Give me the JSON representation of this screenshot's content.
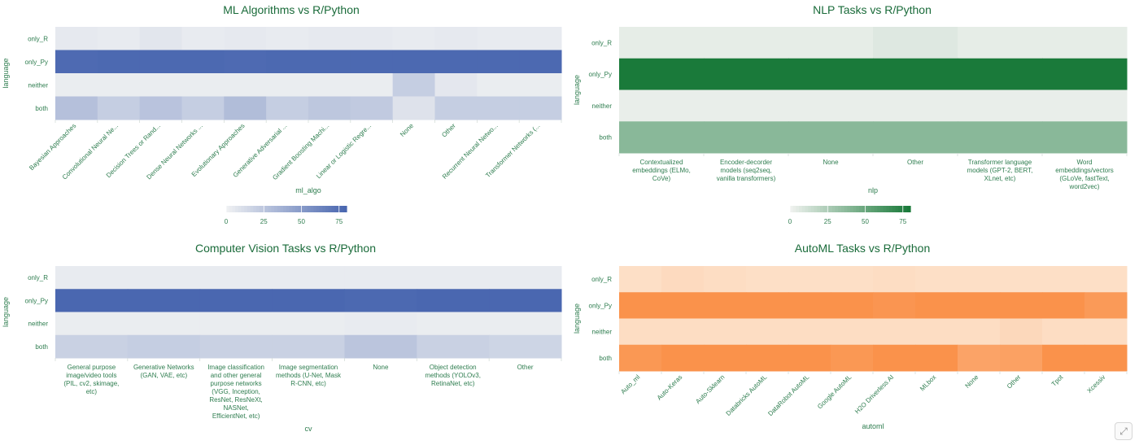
{
  "ui": {
    "expand_icon": "expand-icon",
    "expand_glyph": "⤢"
  },
  "chart_data": [
    {
      "id": "ml",
      "type": "heatmap",
      "title": "ML Algorithms vs R/Python",
      "xlabel": "ml_algo",
      "ylabel": "language",
      "colormap": {
        "low": "#eef0f2",
        "high": "#4a67b0"
      },
      "rows": [
        "only_R",
        "only_Py",
        "neither",
        "both"
      ],
      "categories": [
        "Bayesian Approaches",
        "Convolutional Neural Ne...",
        "Decision Trees or Rand...",
        "Dense Neural Networks ...",
        "Evolutionary Approaches",
        "Generative Adversarial ...",
        "Gradient Boosting Machi...",
        "Linear or Logistic Regre...",
        "None",
        "Other",
        "Recurrent Neural Netwo...",
        "Transformer Networks (..."
      ],
      "values": [
        [
          4,
          3,
          6,
          3,
          4,
          3,
          4,
          4,
          3,
          4,
          3,
          3
        ],
        [
          78,
          79,
          79,
          79,
          78,
          79,
          79,
          79,
          79,
          79,
          79,
          79
        ],
        [
          2,
          2,
          2,
          2,
          2,
          2,
          2,
          2,
          20,
          5,
          2,
          2
        ],
        [
          28,
          20,
          26,
          20,
          30,
          20,
          24,
          22,
          8,
          20,
          20,
          20
        ]
      ],
      "colorbar": {
        "ticks": [
          0,
          25,
          50,
          75
        ],
        "range": [
          0,
          80
        ]
      }
    },
    {
      "id": "nlp",
      "type": "heatmap",
      "title": "NLP Tasks vs R/Python",
      "xlabel": "nlp",
      "ylabel": "language",
      "colormap": {
        "low": "#eef1ee",
        "high": "#1a7a3a"
      },
      "rows": [
        "only_R",
        "only_Py",
        "neither",
        "both"
      ],
      "categories": [
        "Contextualized embeddings (ELMo, CoVe)",
        "Encoder-decorder models (seq2seq, vanilla transformers)",
        "None",
        "Other",
        "Transformer language models (GPT-2, BERT, XLnet, etc)",
        "Word embeddings/vectors (GLoVe, fastText, word2vec)"
      ],
      "values": [
        [
          3,
          3,
          3,
          6,
          3,
          3
        ],
        [
          80,
          80,
          80,
          80,
          80,
          80
        ],
        [
          2,
          2,
          2,
          2,
          2,
          2
        ],
        [
          38,
          38,
          38,
          38,
          38,
          38
        ]
      ],
      "colorbar": {
        "ticks": [
          0,
          25,
          50,
          75
        ],
        "range": [
          0,
          80
        ]
      }
    },
    {
      "id": "cv",
      "type": "heatmap",
      "title": "Computer Vision Tasks vs R/Python",
      "xlabel": "cv",
      "ylabel": "language",
      "colormap": {
        "low": "#eef0f2",
        "high": "#4a67b0"
      },
      "rows": [
        "only_R",
        "only_Py",
        "neither",
        "both"
      ],
      "categories": [
        "General purpose image/video tools (PIL, cv2, skimage, etc)",
        "Generative Networks (GAN, VAE, etc)",
        "Image classification and other general purpose networks (VGG, Inception, ResNet, ResNeXt, NASNet, EfficientNet, etc)",
        "Image segmentation methods (U-Net, Mask R-CNN, etc)",
        "None",
        "Object detection methods (YOLOv3, RetinaNet, etc)",
        "Other"
      ],
      "values": [
        [
          3,
          3,
          3,
          3,
          3,
          3,
          3
        ],
        [
          80,
          80,
          80,
          80,
          79,
          80,
          80
        ],
        [
          2,
          2,
          2,
          2,
          3,
          2,
          2
        ],
        [
          18,
          20,
          18,
          18,
          25,
          18,
          16
        ]
      ]
    },
    {
      "id": "automl",
      "type": "heatmap",
      "title": "AutoML Tasks vs R/Python",
      "xlabel": "automl",
      "ylabel": "language",
      "colormap": {
        "low": "#fde8d5",
        "high": "#fa8c42"
      },
      "rows": [
        "only_R",
        "only_Py",
        "neither",
        "both"
      ],
      "categories": [
        "Auto_ml",
        "Auto-Keras",
        "Auto-Sklearn",
        "Databricks AutoML",
        "DataRobot AutoML",
        "Google AutoML",
        "H2O Driverless AI",
        "MLbox",
        "None",
        "Other",
        "Tpot",
        "Xcessiv"
      ],
      "values": [
        [
          8,
          12,
          10,
          8,
          8,
          8,
          10,
          8,
          8,
          8,
          8,
          8
        ],
        [
          75,
          75,
          75,
          75,
          75,
          75,
          72,
          75,
          75,
          75,
          75,
          68
        ],
        [
          10,
          10,
          10,
          10,
          10,
          10,
          10,
          10,
          10,
          14,
          10,
          10
        ],
        [
          70,
          75,
          75,
          75,
          75,
          70,
          75,
          75,
          60,
          62,
          75,
          75
        ]
      ]
    }
  ]
}
